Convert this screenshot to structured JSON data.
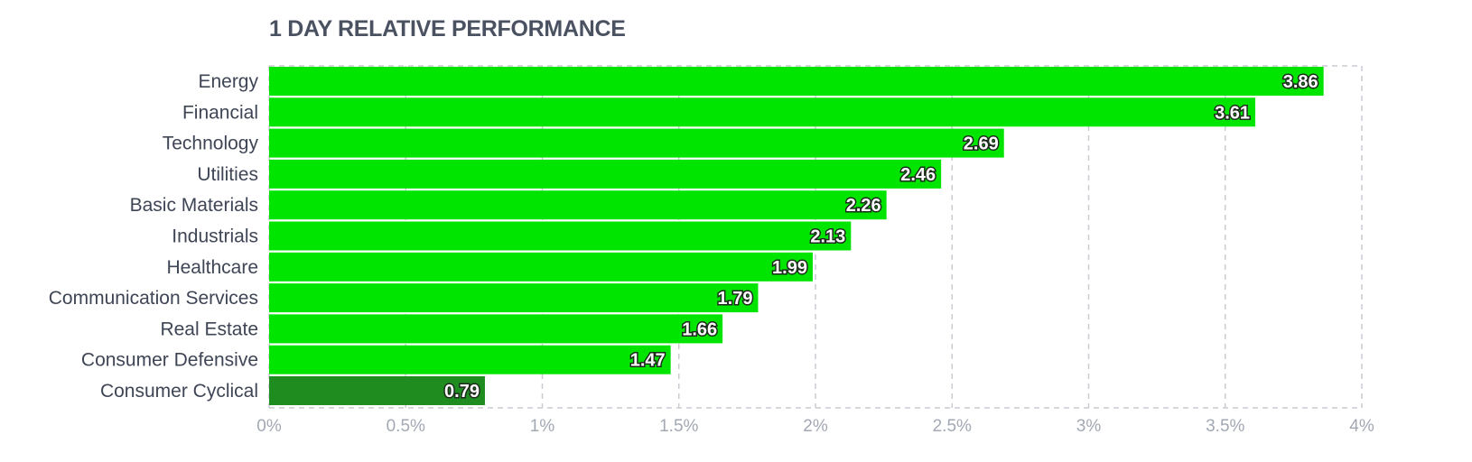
{
  "title": "1 DAY RELATIVE PERFORMANCE",
  "colors": {
    "bar_positive": "#00e500",
    "bar_highlight": "#1e8c1e",
    "grid": "#c9ccd2",
    "title": "#4a5160",
    "category_label": "#3e4555",
    "tick_label": "#a2a8b4",
    "value_label": "#ffffff"
  },
  "chart_data": {
    "type": "bar",
    "orientation": "horizontal",
    "title": "1 DAY RELATIVE PERFORMANCE",
    "xlabel": "",
    "ylabel": "",
    "categories": [
      "Energy",
      "Financial",
      "Technology",
      "Utilities",
      "Basic Materials",
      "Industrials",
      "Healthcare",
      "Communication Services",
      "Real Estate",
      "Consumer Defensive",
      "Consumer Cyclical"
    ],
    "values": [
      3.86,
      3.61,
      2.69,
      2.46,
      2.26,
      2.13,
      1.99,
      1.79,
      1.66,
      1.47,
      0.79
    ],
    "value_labels": [
      "3.86",
      "3.61",
      "2.69",
      "2.46",
      "2.26",
      "2.13",
      "1.99",
      "1.79",
      "1.66",
      "1.47",
      "0.79"
    ],
    "xlim": [
      0,
      4
    ],
    "xticks": [
      0,
      0.5,
      1,
      1.5,
      2,
      2.5,
      3,
      3.5,
      4
    ],
    "xtick_labels": [
      "0%",
      "0.5%",
      "1%",
      "1.5%",
      "2%",
      "2.5%",
      "3%",
      "3.5%",
      "4%"
    ],
    "highlighted_category": "Consumer Cyclical",
    "grid": true
  }
}
